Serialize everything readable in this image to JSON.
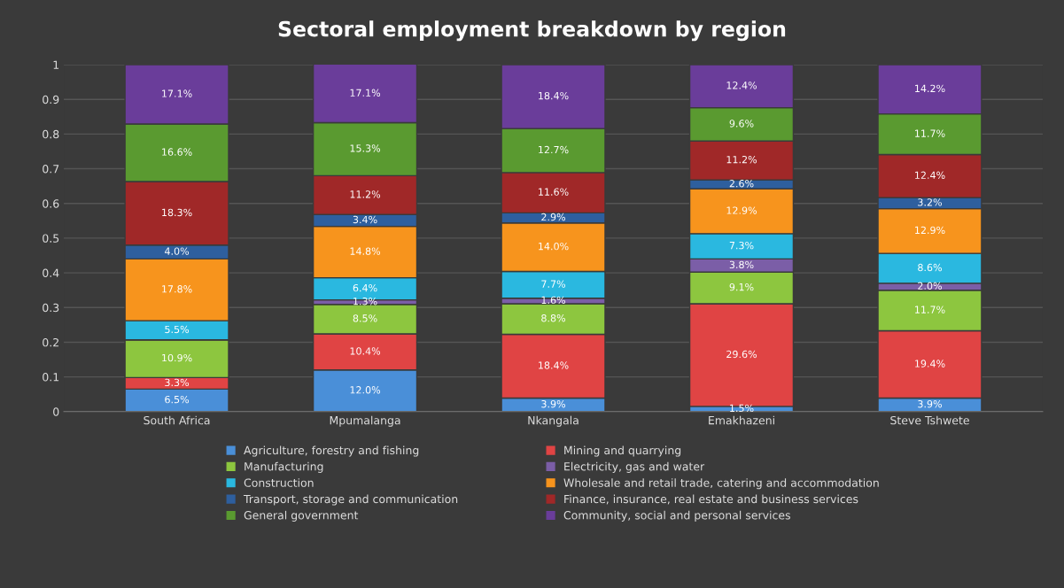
{
  "chart_data": {
    "type": "bar",
    "stacked": true,
    "title": "Sectoral employment breakdown by region",
    "categories": [
      "South Africa",
      "Mpumalanga",
      "Nkangala",
      "Emakhazeni",
      "Steve Tshwete"
    ],
    "series": [
      {
        "name": "Agriculture, forestry and fishing",
        "color": "#4a8fd8",
        "values": [
          0.065,
          0.12,
          0.039,
          0.015,
          0.039
        ],
        "value_labels": [
          "6.5%",
          "12.0%",
          "3.9%",
          "1.5%",
          "3.9%"
        ]
      },
      {
        "name": "Mining and quarrying",
        "color": "#e04444",
        "values": [
          0.033,
          0.104,
          0.184,
          0.296,
          0.194
        ],
        "value_labels": [
          "3.3%",
          "10.4%",
          "18.4%",
          "29.6%",
          "19.4%"
        ]
      },
      {
        "name": "Manufacturing",
        "color": "#8dc63f",
        "values": [
          0.109,
          0.085,
          0.088,
          0.091,
          0.117
        ],
        "value_labels": [
          "10.9%",
          "8.5%",
          "8.8%",
          "9.1%",
          "11.7%"
        ]
      },
      {
        "name": "Electricity, gas and water",
        "color": "#7b5ea7",
        "values": [
          0.0,
          0.013,
          0.016,
          0.038,
          0.02
        ],
        "value_labels": [
          null,
          "1.3%",
          "1.6%",
          "3.8%",
          "2.0%"
        ]
      },
      {
        "name": "Construction",
        "color": "#2ab8e0",
        "values": [
          0.055,
          0.064,
          0.077,
          0.073,
          0.086
        ],
        "value_labels": [
          "5.5%",
          "6.4%",
          "7.7%",
          "7.3%",
          "8.6%"
        ]
      },
      {
        "name": "Wholesale and retail trade, catering and accommodation",
        "color": "#f7941d",
        "values": [
          0.178,
          0.148,
          0.14,
          0.129,
          0.129
        ],
        "value_labels": [
          "17.8%",
          "14.8%",
          "14.0%",
          "12.9%",
          "12.9%"
        ]
      },
      {
        "name": "Transport, storage and communication",
        "color": "#2e5f9e",
        "values": [
          0.04,
          0.034,
          0.029,
          0.026,
          0.032
        ],
        "value_labels": [
          "4.0%",
          "3.4%",
          "2.9%",
          "2.6%",
          "3.2%"
        ]
      },
      {
        "name": "Finance, insurance, real estate and business services",
        "color": "#a02828",
        "values": [
          0.183,
          0.112,
          0.116,
          0.112,
          0.124
        ],
        "value_labels": [
          "18.3%",
          "11.2%",
          "11.6%",
          "11.2%",
          "12.4%"
        ]
      },
      {
        "name": "General government",
        "color": "#5a9a30",
        "values": [
          0.166,
          0.153,
          0.127,
          0.096,
          0.117
        ],
        "value_labels": [
          "16.6%",
          "15.3%",
          "12.7%",
          "9.6%",
          "11.7%"
        ]
      },
      {
        "name": "Community, social and personal services",
        "color": "#6a3d9a",
        "values": [
          0.171,
          0.171,
          0.184,
          0.124,
          0.142
        ],
        "value_labels": [
          "17.1%",
          "17.1%",
          "18.4%",
          "12.4%",
          "14.2%"
        ]
      }
    ],
    "ylim": [
      0,
      1
    ],
    "yticks": [
      0,
      0.1,
      0.2,
      0.3,
      0.4,
      0.5,
      0.6,
      0.7,
      0.8,
      0.9,
      1
    ],
    "grid": "y",
    "legend": "bottom"
  }
}
